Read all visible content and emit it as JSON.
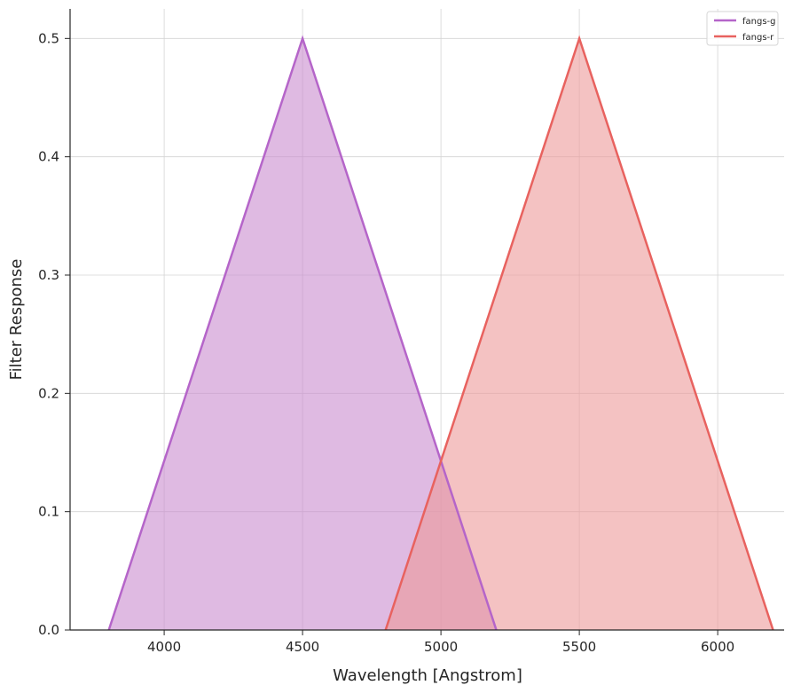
{
  "chart_data": {
    "type": "area",
    "xlabel": "Wavelength [Angstrom]",
    "ylabel": "Filter Response",
    "xlim": [
      3660,
      6240
    ],
    "ylim": [
      0,
      0.525
    ],
    "xticks": [
      4000,
      4500,
      5000,
      5500,
      6000
    ],
    "yticks": [
      0.0,
      0.1,
      0.2,
      0.3,
      0.4,
      0.5
    ],
    "xtick_labels": [
      "4000",
      "4500",
      "5000",
      "5500",
      "6000"
    ],
    "ytick_labels": [
      "0.0",
      "0.1",
      "0.2",
      "0.3",
      "0.4",
      "0.5"
    ],
    "grid": true,
    "legend_position": "top-right",
    "series": [
      {
        "name": "fangs-g",
        "color": "#b565c9",
        "fill_color": "#c98ccf",
        "x": [
          3800,
          4500,
          5200
        ],
        "y": [
          0.0,
          0.5,
          0.0
        ]
      },
      {
        "name": "fangs-r",
        "color": "#e8625f",
        "fill_color": "#ed9a99",
        "x": [
          4800,
          5500,
          6200
        ],
        "y": [
          0.0,
          0.5,
          0.0
        ]
      }
    ]
  }
}
